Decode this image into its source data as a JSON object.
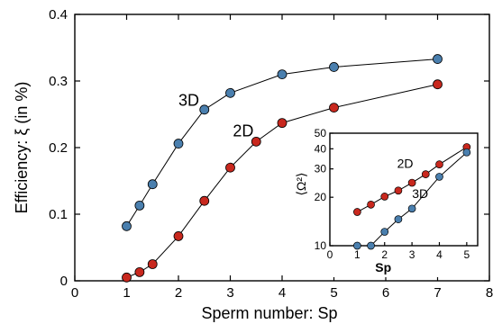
{
  "chart_data": [
    {
      "type": "line",
      "xlabel": "Sperm number: Sp",
      "ylabel": "Efficiency: ξ  (in %)",
      "xlim": [
        0,
        8
      ],
      "ylim": [
        0,
        0.4
      ],
      "xticks": [
        "0",
        "1",
        "2",
        "3",
        "4",
        "5",
        "6",
        "7",
        "8"
      ],
      "yticks": [
        "0",
        "0.1",
        "0.2",
        "0.3",
        "0.4"
      ],
      "grid": false,
      "series": [
        {
          "name": "3D",
          "color": "#4a7fae",
          "x": [
            1,
            1.25,
            1.5,
            2,
            2.5,
            3,
            4,
            5,
            7
          ],
          "y": [
            0.082,
            0.113,
            0.145,
            0.206,
            0.257,
            0.282,
            0.31,
            0.321,
            0.333
          ]
        },
        {
          "name": "2D",
          "color": "#c8281e",
          "x": [
            1,
            1.25,
            1.5,
            2,
            2.5,
            3,
            3.5,
            4,
            5,
            7
          ],
          "y": [
            0.005,
            0.013,
            0.025,
            0.067,
            0.12,
            0.17,
            0.209,
            0.237,
            0.26,
            0.295
          ]
        }
      ]
    },
    {
      "type": "line",
      "xlabel": "Sp",
      "ylabel": "⟨Ω²⟩",
      "xlim": [
        0,
        5.4
      ],
      "ylim": [
        10,
        50
      ],
      "yscale": "log",
      "xticks": [
        "0",
        "1",
        "2",
        "3",
        "4",
        "5"
      ],
      "yticks": [
        "10",
        "20",
        "30",
        "40",
        "50"
      ],
      "grid": false,
      "series": [
        {
          "name": "2D",
          "color": "#c8281e",
          "x": [
            1,
            1.5,
            2,
            2.5,
            3,
            3.5,
            4,
            5
          ],
          "y": [
            16.2,
            18,
            20.2,
            22,
            24.6,
            27.8,
            32,
            41
          ]
        },
        {
          "name": "3D",
          "color": "#4a7fae",
          "x": [
            1,
            1.5,
            2,
            2.5,
            3,
            4,
            5
          ],
          "y": [
            10,
            10,
            12.2,
            14.6,
            17,
            26.8,
            38
          ]
        }
      ]
    }
  ]
}
